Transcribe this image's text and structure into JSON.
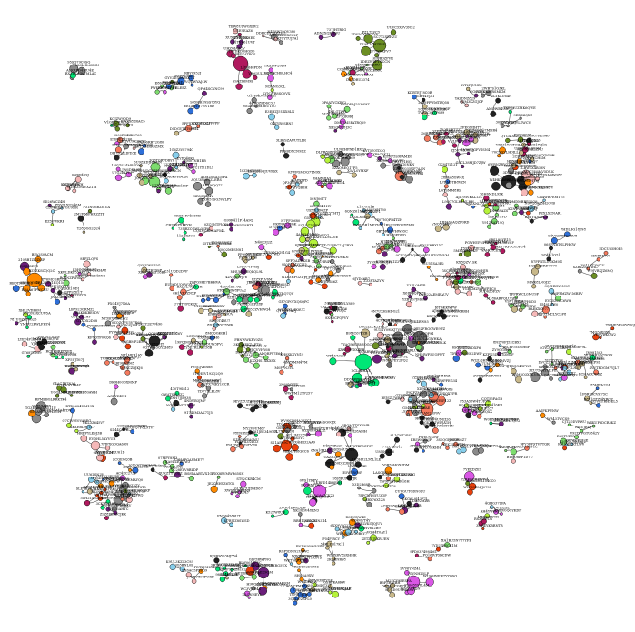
{
  "diagram": {
    "type": "force-directed network graph",
    "label_style": "tiny alphanumeric node identifiers (illegible at this resolution)",
    "colors": {
      "background": "#ffffff",
      "edge": "#555555",
      "node_outline": "#111111",
      "label": "#000000"
    },
    "clusters": [
      {
        "name": "green-main",
        "color": "#00e676"
      },
      {
        "name": "grey-hub-right",
        "color": "#6e6e6e"
      },
      {
        "name": "salmon",
        "color": "#f47a5e"
      },
      {
        "name": "orange-left",
        "color": "#ff8a00"
      },
      {
        "name": "maroon-top",
        "color": "#b0195e"
      },
      {
        "name": "olive-top",
        "color": "#6b8e23"
      },
      {
        "name": "yellow-green",
        "color": "#b5f23a"
      },
      {
        "name": "black",
        "color": "#222222"
      },
      {
        "name": "magenta",
        "color": "#d957e5"
      },
      {
        "name": "red-orange",
        "color": "#e8400c"
      },
      {
        "name": "light-green",
        "color": "#7ddc6e"
      },
      {
        "name": "purple-bottom",
        "color": "#6b1e7a"
      },
      {
        "name": "pink",
        "color": "#f5b8b8"
      },
      {
        "name": "blue",
        "color": "#2e6fd8"
      },
      {
        "name": "grey",
        "color": "#8a8a8a"
      }
    ]
  }
}
